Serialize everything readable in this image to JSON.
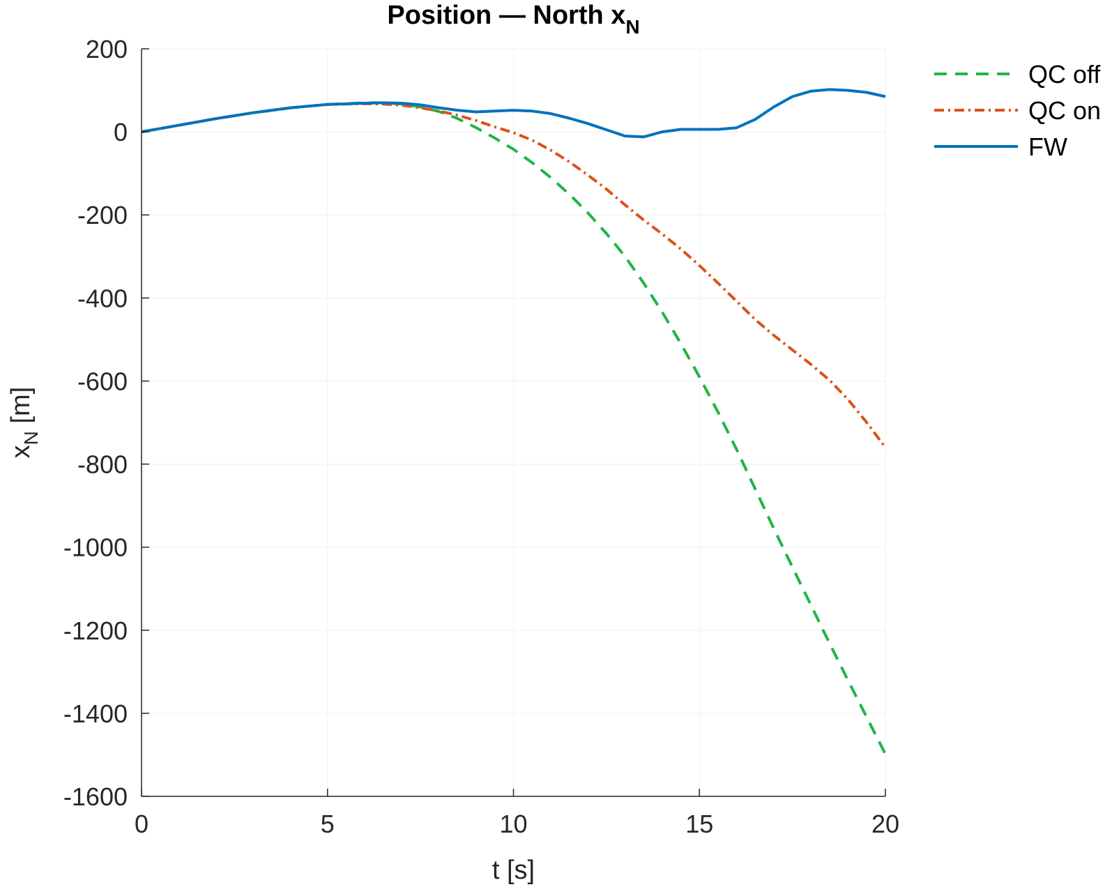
{
  "chart_data": {
    "type": "line",
    "title": {
      "main": "Position — North x",
      "subscript": "N"
    },
    "xlabel": "t [s]",
    "ylabel": {
      "main": "x",
      "subscript": "N",
      "unit": " [m]"
    },
    "xlim": [
      0,
      20
    ],
    "ylim": [
      -1600,
      200
    ],
    "xticks": [
      0,
      5,
      10,
      15,
      20
    ],
    "xtick_labels": [
      "0",
      "5",
      "10",
      "15",
      "20"
    ],
    "yticks": [
      200,
      0,
      -200,
      -400,
      -600,
      -800,
      -1000,
      -1200,
      -1400,
      -1600
    ],
    "ytick_labels": [
      "200",
      "0",
      "-200",
      "-400",
      "-600",
      "-800",
      "-1000",
      "-1200",
      "-1400",
      "-1600"
    ],
    "grid": true,
    "legend_position": "outside-top-right",
    "series": [
      {
        "name": "QC off",
        "color": "#1fb547",
        "style": "dashed",
        "x": [
          0,
          1,
          2,
          3,
          4,
          5,
          6,
          6.5,
          7,
          7.5,
          8,
          8.5,
          9,
          9.5,
          10,
          10.5,
          11,
          11.5,
          12,
          12.5,
          13,
          13.5,
          14,
          14.5,
          15,
          15.5,
          16,
          16.5,
          17,
          17.5,
          18,
          18.5,
          19,
          19.5,
          20
        ],
        "y": [
          0,
          16,
          32,
          46,
          58,
          66,
          70,
          70,
          67,
          60,
          49,
          32,
          10,
          -15,
          -42,
          -74,
          -110,
          -150,
          -195,
          -245,
          -300,
          -364,
          -434,
          -510,
          -590,
          -675,
          -765,
          -860,
          -955,
          -1048,
          -1140,
          -1232,
          -1322,
          -1410,
          -1498
        ]
      },
      {
        "name": "QC on",
        "color": "#d95319",
        "style": "dashdot",
        "x": [
          0,
          1,
          2,
          3,
          4,
          5,
          6,
          6.5,
          7,
          7.5,
          8,
          8.5,
          9,
          9.5,
          10,
          10.5,
          11,
          11.5,
          12,
          12.5,
          13,
          13.5,
          14,
          14.5,
          15,
          15.5,
          16,
          16.5,
          17,
          17.5,
          18,
          18.5,
          19,
          19.5,
          20
        ],
        "y": [
          0,
          16,
          32,
          46,
          58,
          66,
          68,
          67,
          64,
          58,
          50,
          40,
          27,
          12,
          -2,
          -20,
          -44,
          -72,
          -104,
          -138,
          -176,
          -212,
          -246,
          -282,
          -322,
          -364,
          -408,
          -452,
          -490,
          -525,
          -560,
          -598,
          -645,
          -700,
          -760
        ]
      },
      {
        "name": "FW",
        "color": "#0072bd",
        "style": "solid",
        "x": [
          0,
          1,
          2,
          3,
          4,
          5,
          6,
          6.5,
          7,
          7.5,
          8,
          8.5,
          9,
          9.5,
          10,
          10.5,
          11,
          11.5,
          12,
          12.5,
          13,
          13.5,
          14,
          14.5,
          15,
          15.5,
          16,
          16.5,
          17,
          17.5,
          18,
          18.5,
          19,
          19.5,
          20
        ],
        "y": [
          0,
          16,
          32,
          46,
          58,
          66,
          69,
          70,
          69,
          65,
          58,
          52,
          48,
          50,
          52,
          50,
          44,
          33,
          20,
          5,
          -10,
          -12,
          0,
          6,
          6,
          6,
          10,
          30,
          60,
          85,
          98,
          102,
          100,
          95,
          85
        ]
      }
    ]
  }
}
